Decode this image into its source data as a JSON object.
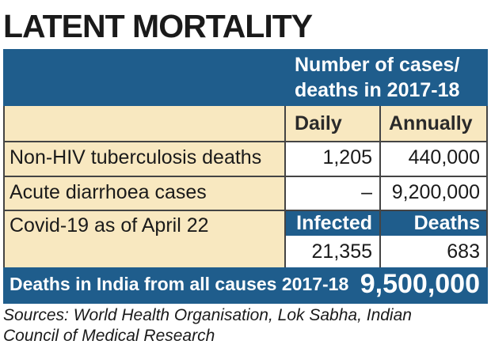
{
  "title": "LATENT MORTALITY",
  "header": {
    "line1": "Number of cases/",
    "line2": "deaths in 2017-18"
  },
  "columns": {
    "daily": "Daily",
    "annually": "Annually"
  },
  "rows": [
    {
      "label": "Non-HIV tuberculosis deaths",
      "daily": "1,205",
      "annually": "440,000"
    },
    {
      "label": "Acute diarrhoea cases",
      "daily": "–",
      "annually": "9,200,000"
    }
  ],
  "covid": {
    "label": "Covid-19 as of April 22",
    "infected_label": "Infected",
    "deaths_label": "Deaths",
    "infected": "21,355",
    "deaths": "683"
  },
  "total": {
    "label": "Deaths in India from all causes 2017-18",
    "value": "9,500,000"
  },
  "source": {
    "line1": "Sources: World Health Organisation, Lok Sabha, Indian",
    "line2": "Council of Medical Research"
  },
  "colors": {
    "blue": "#1f5d8c",
    "tan": "#f8e8c0"
  },
  "chart_data": {
    "type": "table",
    "title": "LATENT MORTALITY",
    "column_headers": [
      "Daily",
      "Annually"
    ],
    "rows": [
      {
        "label": "Non-HIV tuberculosis deaths",
        "daily": "1,205",
        "annually": "440,000"
      },
      {
        "label": "Acute diarrhoea cases",
        "daily": "–",
        "annually": "9,200,000"
      },
      {
        "label": "Covid-19 as of April 22",
        "infected": "21,355",
        "deaths": "683"
      }
    ],
    "total": {
      "label": "Deaths in India from all causes 2017-18",
      "value": "9,500,000"
    }
  }
}
